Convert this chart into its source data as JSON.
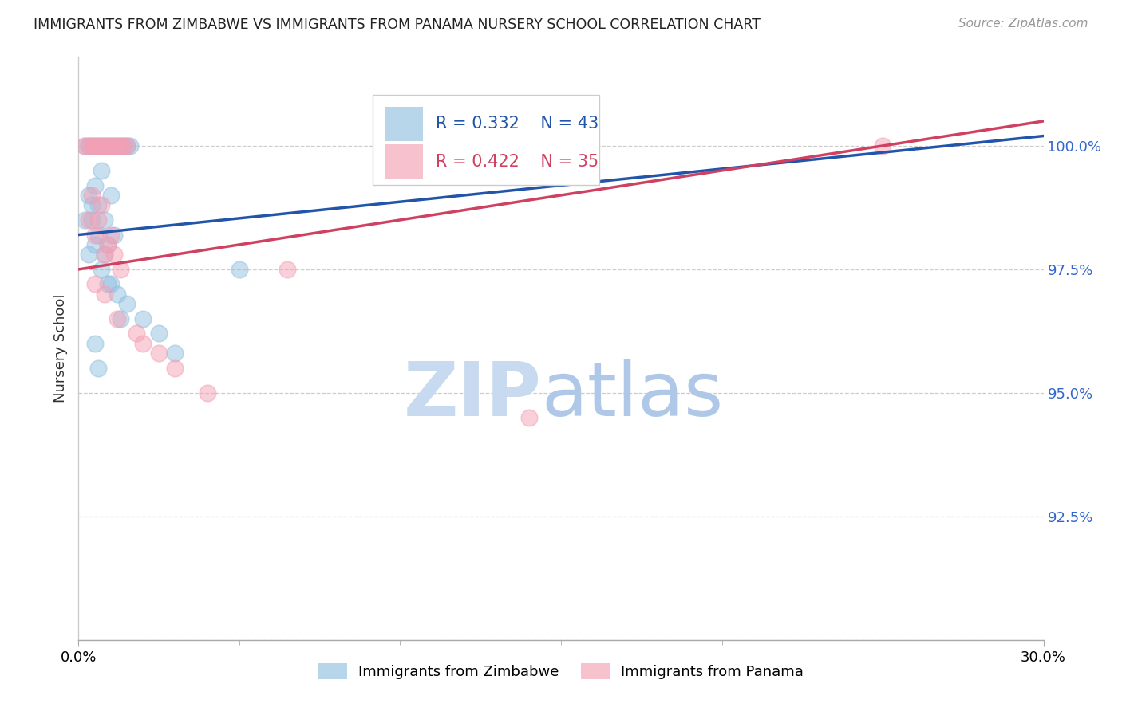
{
  "title": "IMMIGRANTS FROM ZIMBABWE VS IMMIGRANTS FROM PANAMA NURSERY SCHOOL CORRELATION CHART",
  "source": "Source: ZipAtlas.com",
  "ylabel": "Nursery School",
  "yticks": [
    90.0,
    92.5,
    95.0,
    97.5,
    100.0
  ],
  "ytick_labels": [
    "",
    "92.5%",
    "95.0%",
    "97.5%",
    "100.0%"
  ],
  "xlim": [
    0.0,
    30.0
  ],
  "ylim": [
    90.0,
    101.8
  ],
  "legend_r1": "R = 0.332",
  "legend_n1": "N = 43",
  "legend_r2": "R = 0.422",
  "legend_n2": "N = 35",
  "blue_color": "#92c0e0",
  "pink_color": "#f4a0b5",
  "blue_line_color": "#2255aa",
  "pink_line_color": "#d04060",
  "watermark_zip_color": "#c8daf0",
  "watermark_atlas_color": "#b0c8e8",
  "blue_x": [
    0.2,
    0.3,
    0.4,
    0.5,
    0.6,
    0.7,
    0.8,
    0.9,
    1.0,
    1.1,
    1.2,
    1.3,
    1.4,
    1.5,
    1.6,
    0.3,
    0.4,
    0.5,
    0.6,
    0.7,
    0.8,
    0.9,
    1.0,
    1.1,
    0.2,
    0.3,
    0.5,
    0.7,
    0.9,
    1.2,
    1.5,
    2.0,
    2.5,
    3.0,
    0.4,
    0.6,
    0.8,
    1.0,
    1.3,
    0.5,
    0.6,
    14.0,
    5.0
  ],
  "blue_y": [
    100.0,
    100.0,
    100.0,
    100.0,
    100.0,
    100.0,
    100.0,
    100.0,
    100.0,
    100.0,
    100.0,
    100.0,
    100.0,
    100.0,
    100.0,
    99.0,
    98.5,
    99.2,
    98.8,
    99.5,
    98.5,
    98.0,
    99.0,
    98.2,
    98.5,
    97.8,
    98.0,
    97.5,
    97.2,
    97.0,
    96.8,
    96.5,
    96.2,
    95.8,
    98.8,
    98.2,
    97.8,
    97.2,
    96.5,
    96.0,
    95.5,
    100.0,
    97.5
  ],
  "pink_x": [
    0.2,
    0.3,
    0.4,
    0.5,
    0.6,
    0.7,
    0.8,
    0.9,
    1.0,
    1.1,
    1.2,
    1.3,
    1.4,
    1.5,
    0.3,
    0.5,
    0.7,
    0.9,
    1.1,
    1.3,
    0.4,
    0.6,
    0.8,
    1.0,
    0.5,
    0.8,
    1.2,
    2.0,
    3.0,
    4.0,
    6.5,
    1.8,
    2.5,
    25.0,
    14.0
  ],
  "pink_y": [
    100.0,
    100.0,
    100.0,
    100.0,
    100.0,
    100.0,
    100.0,
    100.0,
    100.0,
    100.0,
    100.0,
    100.0,
    100.0,
    100.0,
    98.5,
    98.2,
    98.8,
    98.0,
    97.8,
    97.5,
    99.0,
    98.5,
    97.8,
    98.2,
    97.2,
    97.0,
    96.5,
    96.0,
    95.5,
    95.0,
    97.5,
    96.2,
    95.8,
    100.0,
    94.5
  ]
}
